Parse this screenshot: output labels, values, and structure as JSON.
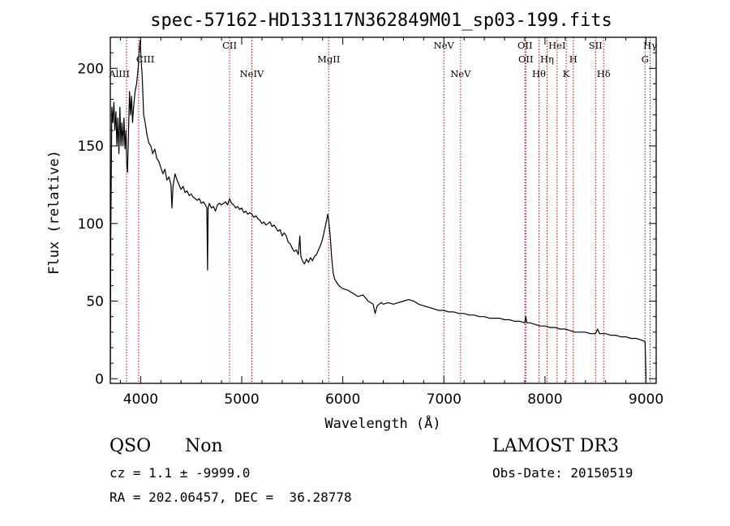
{
  "chart_data": {
    "type": "line",
    "title": "spec-57162-HD133117N362849M01_sp03-199.fits",
    "xlabel": "Wavelength (Å)",
    "ylabel": "Flux (relative)",
    "xlim": [
      3700,
      9100
    ],
    "ylim": [
      -3,
      220
    ],
    "x_ticks": [
      "4000",
      "5000",
      "6000",
      "7000",
      "8000",
      "9000"
    ],
    "y_ticks": [
      "0",
      "50",
      "100",
      "150",
      "200"
    ],
    "grid": false,
    "series": [
      {
        "points": [
          [
            3700,
            0
          ],
          [
            3705,
            95
          ],
          [
            3715,
            175
          ],
          [
            3725,
            165
          ],
          [
            3735,
            178
          ],
          [
            3745,
            160
          ],
          [
            3755,
            172
          ],
          [
            3765,
            150
          ],
          [
            3775,
            168
          ],
          [
            3785,
            145
          ],
          [
            3795,
            175
          ],
          [
            3805,
            150
          ],
          [
            3815,
            165
          ],
          [
            3825,
            150
          ],
          [
            3835,
            168
          ],
          [
            3845,
            148
          ],
          [
            3855,
            160
          ],
          [
            3862,
            140
          ],
          [
            3870,
            133
          ],
          [
            3880,
            158
          ],
          [
            3890,
            185
          ],
          [
            3900,
            170
          ],
          [
            3910,
            182
          ],
          [
            3920,
            165
          ],
          [
            3930,
            175
          ],
          [
            3945,
            185
          ],
          [
            3960,
            190
          ],
          [
            3975,
            200
          ],
          [
            3985,
            210
          ],
          [
            3995,
            218
          ],
          [
            4005,
            205
          ],
          [
            4015,
            195
          ],
          [
            4030,
            170
          ],
          [
            4045,
            165
          ],
          [
            4060,
            158
          ],
          [
            4080,
            152
          ],
          [
            4100,
            150
          ],
          [
            4120,
            145
          ],
          [
            4140,
            148
          ],
          [
            4160,
            142
          ],
          [
            4180,
            140
          ],
          [
            4200,
            136
          ],
          [
            4220,
            132
          ],
          [
            4240,
            135
          ],
          [
            4260,
            128
          ],
          [
            4280,
            130
          ],
          [
            4300,
            125
          ],
          [
            4310,
            110
          ],
          [
            4320,
            124
          ],
          [
            4340,
            132
          ],
          [
            4360,
            128
          ],
          [
            4380,
            125
          ],
          [
            4400,
            122
          ],
          [
            4420,
            124
          ],
          [
            4440,
            120
          ],
          [
            4460,
            121
          ],
          [
            4480,
            118
          ],
          [
            4500,
            119
          ],
          [
            4520,
            117
          ],
          [
            4540,
            116
          ],
          [
            4560,
            115
          ],
          [
            4580,
            116
          ],
          [
            4600,
            113
          ],
          [
            4620,
            114
          ],
          [
            4640,
            112
          ],
          [
            4655,
            110
          ],
          [
            4662,
            70
          ],
          [
            4668,
            110
          ],
          [
            4680,
            113
          ],
          [
            4700,
            110
          ],
          [
            4720,
            111
          ],
          [
            4740,
            108
          ],
          [
            4760,
            112
          ],
          [
            4780,
            113
          ],
          [
            4800,
            112
          ],
          [
            4820,
            113
          ],
          [
            4840,
            114
          ],
          [
            4860,
            112
          ],
          [
            4880,
            116
          ],
          [
            4900,
            113
          ],
          [
            4920,
            112
          ],
          [
            4940,
            110
          ],
          [
            4960,
            111
          ],
          [
            4980,
            109
          ],
          [
            5000,
            110
          ],
          [
            5020,
            107
          ],
          [
            5040,
            108
          ],
          [
            5060,
            106
          ],
          [
            5080,
            107
          ],
          [
            5100,
            106
          ],
          [
            5120,
            104
          ],
          [
            5140,
            105
          ],
          [
            5160,
            103
          ],
          [
            5180,
            102
          ],
          [
            5200,
            100
          ],
          [
            5220,
            101
          ],
          [
            5240,
            99
          ],
          [
            5260,
            100
          ],
          [
            5280,
            101
          ],
          [
            5300,
            98
          ],
          [
            5320,
            99
          ],
          [
            5340,
            97
          ],
          [
            5360,
            95
          ],
          [
            5380,
            96
          ],
          [
            5400,
            92
          ],
          [
            5420,
            94
          ],
          [
            5440,
            92
          ],
          [
            5460,
            88
          ],
          [
            5480,
            87
          ],
          [
            5500,
            84
          ],
          [
            5520,
            82
          ],
          [
            5540,
            83
          ],
          [
            5560,
            80
          ],
          [
            5575,
            92
          ],
          [
            5585,
            79
          ],
          [
            5600,
            76
          ],
          [
            5620,
            74
          ],
          [
            5640,
            77
          ],
          [
            5660,
            75
          ],
          [
            5680,
            78
          ],
          [
            5700,
            76
          ],
          [
            5720,
            79
          ],
          [
            5740,
            80
          ],
          [
            5760,
            83
          ],
          [
            5780,
            86
          ],
          [
            5800,
            90
          ],
          [
            5820,
            96
          ],
          [
            5840,
            102
          ],
          [
            5850,
            106
          ],
          [
            5860,
            102
          ],
          [
            5875,
            92
          ],
          [
            5890,
            78
          ],
          [
            5905,
            68
          ],
          [
            5920,
            64
          ],
          [
            5940,
            62
          ],
          [
            5960,
            60
          ],
          [
            5980,
            59
          ],
          [
            6000,
            58
          ],
          [
            6050,
            57
          ],
          [
            6100,
            55
          ],
          [
            6150,
            53
          ],
          [
            6200,
            54
          ],
          [
            6250,
            50
          ],
          [
            6300,
            48
          ],
          [
            6320,
            42
          ],
          [
            6340,
            47
          ],
          [
            6380,
            49
          ],
          [
            6400,
            48
          ],
          [
            6450,
            49
          ],
          [
            6500,
            48
          ],
          [
            6550,
            49
          ],
          [
            6600,
            50
          ],
          [
            6650,
            51
          ],
          [
            6700,
            50
          ],
          [
            6750,
            48
          ],
          [
            6800,
            47
          ],
          [
            6850,
            46
          ],
          [
            6900,
            45
          ],
          [
            6950,
            44
          ],
          [
            7000,
            44
          ],
          [
            7050,
            43
          ],
          [
            7100,
            43
          ],
          [
            7150,
            42
          ],
          [
            7200,
            42
          ],
          [
            7250,
            41
          ],
          [
            7300,
            41
          ],
          [
            7350,
            40
          ],
          [
            7400,
            40
          ],
          [
            7450,
            39
          ],
          [
            7500,
            39
          ],
          [
            7550,
            39
          ],
          [
            7600,
            38
          ],
          [
            7650,
            38
          ],
          [
            7700,
            37
          ],
          [
            7750,
            37
          ],
          [
            7800,
            36
          ],
          [
            7810,
            40
          ],
          [
            7820,
            36
          ],
          [
            7850,
            36
          ],
          [
            7900,
            35
          ],
          [
            7950,
            34
          ],
          [
            8000,
            34
          ],
          [
            8050,
            33
          ],
          [
            8100,
            33
          ],
          [
            8150,
            32
          ],
          [
            8200,
            32
          ],
          [
            8250,
            31
          ],
          [
            8300,
            30
          ],
          [
            8350,
            30
          ],
          [
            8400,
            30
          ],
          [
            8450,
            29
          ],
          [
            8500,
            29
          ],
          [
            8520,
            32
          ],
          [
            8540,
            29
          ],
          [
            8600,
            29
          ],
          [
            8650,
            28
          ],
          [
            8700,
            28
          ],
          [
            8750,
            27
          ],
          [
            8800,
            27
          ],
          [
            8850,
            26
          ],
          [
            8900,
            26
          ],
          [
            8950,
            25
          ],
          [
            8990,
            24
          ],
          [
            9000,
            0
          ]
        ]
      }
    ],
    "lines": [
      {
        "label": "AlIII",
        "x": 3860,
        "row": 2,
        "side": "left"
      },
      {
        "label": "CIII",
        "x": 3980,
        "row": 1,
        "side": "right"
      },
      {
        "label": "CII",
        "x": 4880,
        "row": 0,
        "side": "center"
      },
      {
        "label": "NeIV",
        "x": 5100,
        "row": 2,
        "side": "center"
      },
      {
        "label": "MgII",
        "x": 5860,
        "row": 1,
        "side": "center"
      },
      {
        "label": "NeV",
        "x": 7000,
        "row": 0,
        "side": "center"
      },
      {
        "label": "NeV",
        "x": 7165,
        "row": 2,
        "side": "center"
      },
      {
        "label": "OII",
        "x": 7802,
        "row": 0,
        "side": "center"
      },
      {
        "label": "OII",
        "x": 7810,
        "row": 1,
        "side": "center"
      },
      {
        "label": "Hθ",
        "x": 7940,
        "row": 2,
        "side": "center"
      },
      {
        "label": "Hη",
        "x": 8020,
        "row": 1,
        "side": "center"
      },
      {
        "label": "HeI",
        "x": 8120,
        "row": 0,
        "side": "center"
      },
      {
        "label": "K",
        "x": 8210,
        "row": 2,
        "side": "center"
      },
      {
        "label": "H",
        "x": 8280,
        "row": 1,
        "side": "center"
      },
      {
        "label": "SII",
        "x": 8500,
        "row": 0,
        "side": "center"
      },
      {
        "label": "Hδ",
        "x": 8580,
        "row": 2,
        "side": "center"
      },
      {
        "label": "G",
        "x": 8990,
        "row": 1,
        "side": "center"
      },
      {
        "label": "Hγ",
        "x": 9040,
        "row": 0,
        "side": "center"
      }
    ]
  },
  "info": {
    "class": "QSO",
    "subclass": "Non",
    "survey": "LAMOST DR3",
    "cz": "cz = 1.1 ± -9999.0",
    "obs_date": "Obs-Date: 20150519",
    "radec": "RA = 202.06457, DEC =  36.28778"
  },
  "colors": {
    "spectrum": "#000000",
    "lines": "#cc0000",
    "axes": "#000000"
  }
}
